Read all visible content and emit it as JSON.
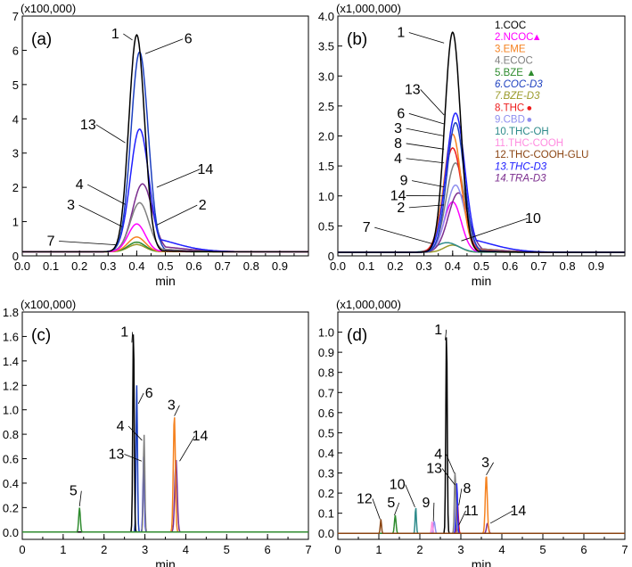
{
  "chart_data": [
    {
      "type": "line",
      "panel_label": "(a)",
      "multiplier": "(x100,000)",
      "xlabel": "min",
      "xlim": [
        0,
        1.0
      ],
      "ylim": [
        0,
        7
      ],
      "xticks": [
        "0.0",
        "0.1",
        "0.2",
        "0.3",
        "0.4",
        "0.5",
        "0.6",
        "0.7",
        "0.8",
        "0.9"
      ],
      "yticks": [
        "0",
        "1",
        "2",
        "3",
        "4",
        "5",
        "6",
        "7"
      ],
      "baseline": 0.12,
      "series": [
        {
          "name": "1",
          "color": "#000000",
          "peak_x": 0.4,
          "peak_y": 6.45,
          "width": 0.055,
          "tail": 0.02
        },
        {
          "name": "2",
          "color": "#ff00ff",
          "peak_x": 0.4,
          "peak_y": 0.93,
          "width": 0.06,
          "tail": 0.15
        },
        {
          "name": "3",
          "color": "#f58220",
          "peak_x": 0.4,
          "peak_y": 0.55,
          "width": 0.06,
          "tail": 0.1
        },
        {
          "name": "4",
          "color": "#808080",
          "peak_x": 0.41,
          "peak_y": 1.55,
          "width": 0.065,
          "tail": 0.2
        },
        {
          "name": "5",
          "color": "#2e8b2e",
          "peak_x": 0.4,
          "peak_y": 0.4,
          "width": 0.06,
          "tail": 0.05
        },
        {
          "name": "6",
          "color": "#1c3fbf",
          "peak_x": 0.41,
          "peak_y": 5.95,
          "width": 0.06,
          "tail": 0.05
        },
        {
          "name": "7",
          "color": "#9a9a2a",
          "peak_x": 0.4,
          "peak_y": 0.33,
          "width": 0.06,
          "tail": 0.05
        },
        {
          "name": "13",
          "color": "#2020ff",
          "peak_x": 0.41,
          "peak_y": 3.7,
          "width": 0.065,
          "tail": 0.35
        },
        {
          "name": "14",
          "color": "#7b2d8e",
          "peak_x": 0.42,
          "peak_y": 2.1,
          "width": 0.07,
          "tail": 0.25
        }
      ],
      "labels": [
        {
          "text": "1",
          "x": 0.325,
          "y": 6.35,
          "target_x": 0.385,
          "target_y": 6.3
        },
        {
          "text": "6",
          "x": 0.58,
          "y": 6.2,
          "target_x": 0.43,
          "target_y": 5.9
        },
        {
          "text": "13",
          "x": 0.23,
          "y": 3.7,
          "target_x": 0.36,
          "target_y": 3.3
        },
        {
          "text": "4",
          "x": 0.2,
          "y": 1.95,
          "target_x": 0.36,
          "target_y": 1.5
        },
        {
          "text": "14",
          "x": 0.64,
          "y": 2.4,
          "target_x": 0.47,
          "target_y": 2.0
        },
        {
          "text": "3",
          "x": 0.17,
          "y": 1.35,
          "target_x": 0.35,
          "target_y": 0.85
        },
        {
          "text": "2",
          "x": 0.63,
          "y": 1.35,
          "target_x": 0.47,
          "target_y": 0.9
        },
        {
          "text": "7",
          "x": 0.1,
          "y": 0.3,
          "target_x": 0.33,
          "target_y": 0.32
        }
      ]
    },
    {
      "type": "line",
      "panel_label": "(b)",
      "multiplier": "(x1,000,000)",
      "xlabel": "min",
      "xlim": [
        0,
        1.0
      ],
      "ylim": [
        0,
        4.0
      ],
      "xticks": [
        "0.0",
        "0.1",
        "0.2",
        "0.3",
        "0.4",
        "0.5",
        "0.6",
        "0.7",
        "0.8",
        "0.9"
      ],
      "yticks": [
        "0",
        "0.5",
        "1.0",
        "1.5",
        "2.0",
        "2.5",
        "3.0",
        "3.5",
        "4.0"
      ],
      "baseline": 0.06,
      "series": [
        {
          "name": "1",
          "color": "#000000",
          "peak_x": 0.4,
          "peak_y": 3.73,
          "width": 0.055,
          "tail": 0.02
        },
        {
          "name": "13",
          "color": "#2020ff",
          "peak_x": 0.41,
          "peak_y": 2.38,
          "width": 0.065,
          "tail": 0.3
        },
        {
          "name": "6",
          "color": "#1c3fbf",
          "peak_x": 0.41,
          "peak_y": 2.22,
          "width": 0.06,
          "tail": 0.05
        },
        {
          "name": "3",
          "color": "#f58220",
          "peak_x": 0.4,
          "peak_y": 2.03,
          "width": 0.06,
          "tail": 0.08
        },
        {
          "name": "8",
          "color": "#ee1c1c",
          "peak_x": 0.4,
          "peak_y": 1.8,
          "width": 0.065,
          "tail": 0.1
        },
        {
          "name": "4",
          "color": "#808080",
          "peak_x": 0.41,
          "peak_y": 1.55,
          "width": 0.065,
          "tail": 0.15
        },
        {
          "name": "9",
          "color": "#8f8fef",
          "peak_x": 0.41,
          "peak_y": 1.18,
          "width": 0.065,
          "tail": 0.1
        },
        {
          "name": "14",
          "color": "#7b2d8e",
          "peak_x": 0.42,
          "peak_y": 1.05,
          "width": 0.07,
          "tail": 0.2
        },
        {
          "name": "2",
          "color": "#ff00ff",
          "peak_x": 0.4,
          "peak_y": 0.9,
          "width": 0.06,
          "tail": 0.1
        },
        {
          "name": "10",
          "color": "#2e8b8b",
          "peak_x": 0.38,
          "peak_y": 0.22,
          "width": 0.08,
          "tail": 0.1
        },
        {
          "name": "7",
          "color": "#9a9a2a",
          "peak_x": 0.4,
          "peak_y": 0.18,
          "width": 0.06,
          "tail": 0.05
        }
      ],
      "labels": [
        {
          "text": "1",
          "x": 0.22,
          "y": 3.65,
          "target_x": 0.37,
          "target_y": 3.55
        },
        {
          "text": "13",
          "x": 0.26,
          "y": 2.7,
          "target_x": 0.37,
          "target_y": 2.35
        },
        {
          "text": "6",
          "x": 0.22,
          "y": 2.3,
          "target_x": 0.37,
          "target_y": 2.2
        },
        {
          "text": "3",
          "x": 0.21,
          "y": 2.05,
          "target_x": 0.37,
          "target_y": 2.0
        },
        {
          "text": "8",
          "x": 0.21,
          "y": 1.8,
          "target_x": 0.37,
          "target_y": 1.78
        },
        {
          "text": "4",
          "x": 0.21,
          "y": 1.55,
          "target_x": 0.37,
          "target_y": 1.55
        },
        {
          "text": "9",
          "x": 0.23,
          "y": 1.18,
          "target_x": 0.37,
          "target_y": 1.15
        },
        {
          "text": "14",
          "x": 0.21,
          "y": 0.93,
          "target_x": 0.37,
          "target_y": 1.0
        },
        {
          "text": "2",
          "x": 0.22,
          "y": 0.73,
          "target_x": 0.37,
          "target_y": 0.85
        },
        {
          "text": "7",
          "x": 0.1,
          "y": 0.4,
          "target_x": 0.33,
          "target_y": 0.2
        },
        {
          "text": "10",
          "x": 0.68,
          "y": 0.55,
          "target_x": 0.43,
          "target_y": 0.25
        }
      ],
      "legend": [
        {
          "text": "1.COC",
          "color": "#000000",
          "italic": false,
          "marker": ""
        },
        {
          "text": "2.NCOC",
          "color": "#ff00ff",
          "italic": false,
          "marker": "▲"
        },
        {
          "text": "3.EME",
          "color": "#f58220",
          "italic": false,
          "marker": ""
        },
        {
          "text": "4.ECOC",
          "color": "#808080",
          "italic": false,
          "marker": ""
        },
        {
          "text": "5.BZE",
          "color": "#2e8b2e",
          "italic": false,
          "marker": "▲"
        },
        {
          "text": "6.COC-D3",
          "color": "#1c3fbf",
          "italic": true,
          "marker": ""
        },
        {
          "text": "7.BZE-D3",
          "color": "#9a9a2a",
          "italic": true,
          "marker": ""
        },
        {
          "text": "8.THC",
          "color": "#ee1c1c",
          "italic": false,
          "marker": "●"
        },
        {
          "text": "9.CBD",
          "color": "#8f8fef",
          "italic": false,
          "marker": "●"
        },
        {
          "text": "10.THC-OH",
          "color": "#2e8b8b",
          "italic": false,
          "marker": ""
        },
        {
          "text": "11.THC-COOH",
          "color": "#ff8ce0",
          "italic": false,
          "marker": ""
        },
        {
          "text": "12.THC-COOH-GLU",
          "color": "#8b4513",
          "italic": false,
          "marker": ""
        },
        {
          "text": "13.THC-D3",
          "color": "#2020ff",
          "italic": true,
          "marker": ""
        },
        {
          "text": "14.TRA-D3",
          "color": "#7b2d8e",
          "italic": true,
          "marker": ""
        }
      ]
    },
    {
      "type": "line",
      "panel_label": "(c)",
      "multiplier": "(x100,000)",
      "xlabel": "min",
      "xlim": [
        0,
        7
      ],
      "ylim": [
        -0.06,
        1.8
      ],
      "xticks": [
        "0",
        "1",
        "2",
        "3",
        "4",
        "5",
        "6",
        "7"
      ],
      "yticks": [
        "0.0",
        "0.2",
        "0.4",
        "0.6",
        "0.8",
        "1.0",
        "1.2",
        "1.4",
        "1.6",
        "1.8"
      ],
      "baseline": 0.0,
      "series": [
        {
          "name": "5",
          "color": "#2e8b2e",
          "peak_x": 1.4,
          "peak_y": 0.2,
          "width": 0.04,
          "tail": 0
        },
        {
          "name": "1",
          "color": "#000000",
          "peak_x": 2.72,
          "peak_y": 1.66,
          "width": 0.035,
          "tail": 0
        },
        {
          "name": "6",
          "color": "#1c3fbf",
          "peak_x": 2.8,
          "peak_y": 1.2,
          "width": 0.035,
          "tail": 0
        },
        {
          "name": "4",
          "color": "#808080",
          "peak_x": 2.98,
          "peak_y": 0.8,
          "width": 0.035,
          "tail": 0
        },
        {
          "name": "13",
          "color": "#2020ff",
          "peak_x": 2.97,
          "peak_y": 0.62,
          "width": 0.035,
          "tail": 0
        },
        {
          "name": "3",
          "color": "#f58220",
          "peak_x": 3.72,
          "peak_y": 0.95,
          "width": 0.05,
          "tail": 0
        },
        {
          "name": "14",
          "color": "#7b2d8e",
          "peak_x": 3.76,
          "peak_y": 0.6,
          "width": 0.06,
          "tail": 0
        }
      ],
      "labels": [
        {
          "text": "5",
          "x": 1.25,
          "y": 0.3,
          "target_x": 1.4,
          "target_y": 0.21
        },
        {
          "text": "1",
          "x": 2.5,
          "y": 1.6,
          "target_x": 2.68,
          "target_y": 1.55
        },
        {
          "text": "6",
          "x": 3.1,
          "y": 1.1,
          "target_x": 2.84,
          "target_y": 1.05
        },
        {
          "text": "4",
          "x": 2.4,
          "y": 0.83,
          "target_x": 2.93,
          "target_y": 0.75
        },
        {
          "text": "13",
          "x": 2.3,
          "y": 0.6,
          "target_x": 2.92,
          "target_y": 0.58
        },
        {
          "text": "3",
          "x": 3.65,
          "y": 1.0,
          "target_x": 3.72,
          "target_y": 0.95
        },
        {
          "text": "14",
          "x": 4.35,
          "y": 0.75,
          "target_x": 3.85,
          "target_y": 0.58
        }
      ]
    },
    {
      "type": "line",
      "panel_label": "(d)",
      "multiplier": "(x1,000,000)",
      "xlabel": "min",
      "xlim": [
        0,
        7
      ],
      "ylim": [
        -0.03,
        1.1
      ],
      "xticks": [
        "0",
        "1",
        "2",
        "3",
        "4",
        "5",
        "6",
        "7"
      ],
      "yticks": [
        "0.0",
        "0.1",
        "0.2",
        "0.3",
        "0.4",
        "0.5",
        "0.6",
        "0.7",
        "0.8",
        "0.9",
        "1.0"
      ],
      "baseline": 0.0,
      "series": [
        {
          "name": "12",
          "color": "#8b4513",
          "peak_x": 1.05,
          "peak_y": 0.07,
          "width": 0.03,
          "tail": 0
        },
        {
          "name": "5",
          "color": "#2e8b2e",
          "peak_x": 1.4,
          "peak_y": 0.09,
          "width": 0.04,
          "tail": 0
        },
        {
          "name": "10",
          "color": "#2e8b8b",
          "peak_x": 1.9,
          "peak_y": 0.13,
          "width": 0.03,
          "tail": 0
        },
        {
          "name": "11",
          "color": "#ff8ce0",
          "peak_x": 2.3,
          "peak_y": 0.06,
          "width": 0.03,
          "tail": 0
        },
        {
          "name": "9",
          "color": "#8f8fef",
          "peak_x": 2.35,
          "peak_y": 0.06,
          "width": 0.04,
          "tail": 0
        },
        {
          "name": "1",
          "color": "#000000",
          "peak_x": 2.65,
          "peak_y": 1.0,
          "width": 0.035,
          "tail": 0
        },
        {
          "name": "4",
          "color": "#808080",
          "peak_x": 2.86,
          "peak_y": 0.31,
          "width": 0.035,
          "tail": 0
        },
        {
          "name": "13",
          "color": "#2020ff",
          "peak_x": 2.9,
          "peak_y": 0.25,
          "width": 0.035,
          "tail": 0
        },
        {
          "name": "8",
          "color": "#ee1c1c",
          "peak_x": 2.92,
          "peak_y": 0.14,
          "width": 0.04,
          "tail": 0
        },
        {
          "name": "3",
          "color": "#f58220",
          "peak_x": 3.62,
          "peak_y": 0.29,
          "width": 0.05,
          "tail": 0
        },
        {
          "name": "14",
          "color": "#7b2d8e",
          "peak_x": 3.65,
          "peak_y": 0.05,
          "width": 0.05,
          "tail": 0
        }
      ],
      "labels": [
        {
          "text": "12",
          "x": 0.65,
          "y": 0.15,
          "target_x": 1.03,
          "target_y": 0.07
        },
        {
          "text": "5",
          "x": 1.3,
          "y": 0.13,
          "target_x": 1.38,
          "target_y": 0.09
        },
        {
          "text": "10",
          "x": 1.45,
          "y": 0.22,
          "target_x": 1.88,
          "target_y": 0.13
        },
        {
          "text": "9",
          "x": 2.15,
          "y": 0.13,
          "target_x": 2.33,
          "target_y": 0.06
        },
        {
          "text": "1",
          "x": 2.45,
          "y": 0.99,
          "target_x": 2.62,
          "target_y": 0.96
        },
        {
          "text": "4",
          "x": 2.45,
          "y": 0.37,
          "target_x": 2.84,
          "target_y": 0.3
        },
        {
          "text": "13",
          "x": 2.35,
          "y": 0.3,
          "target_x": 2.86,
          "target_y": 0.24
        },
        {
          "text": "8",
          "x": 3.15,
          "y": 0.2,
          "target_x": 2.95,
          "target_y": 0.14
        },
        {
          "text": "3",
          "x": 3.6,
          "y": 0.33,
          "target_x": 3.62,
          "target_y": 0.29
        },
        {
          "text": "11",
          "x": 3.25,
          "y": 0.09,
          "target_x": 2.95,
          "target_y": 0.04
        },
        {
          "text": "14",
          "x": 4.4,
          "y": 0.09,
          "target_x": 3.72,
          "target_y": 0.05
        }
      ]
    }
  ]
}
